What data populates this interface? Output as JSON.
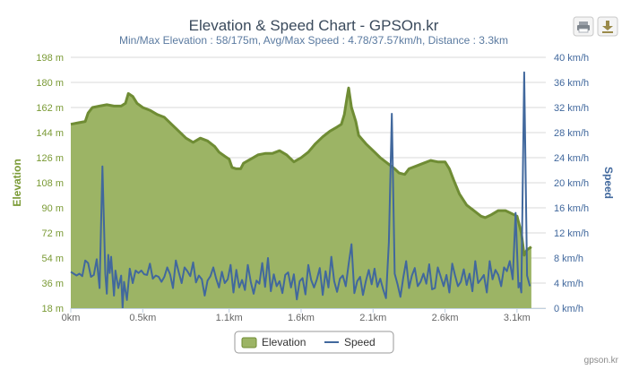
{
  "colors": {
    "elevation_fill": "#9cb465",
    "elevation_line": "#6f8c34",
    "elevation_axis": "#7a9a35",
    "speed_line": "#41689d",
    "speed_axis": "#41689d",
    "title": "#3a4a5c",
    "subtitle": "#5a7aa0",
    "grid": "#d8d8d8",
    "credit": "#8a8a8a"
  },
  "toolbar": {
    "print_icon": "print-icon",
    "export_icon": "download-icon"
  },
  "legend": {
    "elevation_label": "Elevation",
    "speed_label": "Speed"
  },
  "credit": "gpson.kr",
  "chart_data": {
    "type": "area",
    "title": "Elevation & Speed Chart - GPSOn.kr",
    "subtitle": "Min/Max Elevation : 58/175m, Avg/Max Speed : 4.78/37.57km/h, Distance : 3.3km",
    "xlabel": "",
    "x_tick_labels": [
      "0km",
      "0.5km",
      "1.1km",
      "1.6km",
      "2.1km",
      "2.6km",
      "3.1km"
    ],
    "x_ticks": [
      0,
      0.5,
      1.1,
      1.6,
      2.1,
      2.6,
      3.1
    ],
    "xlim": [
      0,
      3.3
    ],
    "grid": true,
    "legend_position": "bottom-center",
    "y_left": {
      "label": "Elevation",
      "ylim": [
        18,
        198
      ],
      "tick_labels": [
        "18 m",
        "36 m",
        "54 m",
        "72 m",
        "90 m",
        "108 m",
        "126 m",
        "144 m",
        "162 m",
        "180 m",
        "198 m"
      ]
    },
    "y_right": {
      "label": "Speed",
      "ylim": [
        0,
        40
      ],
      "tick_labels": [
        "0 km/h",
        "4 km/h",
        "8 km/h",
        "12 km/h",
        "16 km/h",
        "20 km/h",
        "24 km/h",
        "28 km/h",
        "32 km/h",
        "36 km/h",
        "40 km/h"
      ]
    },
    "series": [
      {
        "name": "Elevation",
        "type": "area",
        "unit": "m",
        "points": [
          [
            0.0,
            150
          ],
          [
            0.05,
            151
          ],
          [
            0.1,
            152
          ],
          [
            0.12,
            158
          ],
          [
            0.15,
            162
          ],
          [
            0.2,
            163
          ],
          [
            0.25,
            164
          ],
          [
            0.3,
            163
          ],
          [
            0.35,
            163
          ],
          [
            0.38,
            165
          ],
          [
            0.4,
            172
          ],
          [
            0.43,
            170
          ],
          [
            0.46,
            165
          ],
          [
            0.5,
            162
          ],
          [
            0.55,
            160
          ],
          [
            0.6,
            157
          ],
          [
            0.65,
            155
          ],
          [
            0.7,
            150
          ],
          [
            0.75,
            145
          ],
          [
            0.8,
            140
          ],
          [
            0.85,
            137
          ],
          [
            0.9,
            140
          ],
          [
            0.95,
            138
          ],
          [
            1.0,
            134
          ],
          [
            1.03,
            130
          ],
          [
            1.07,
            127
          ],
          [
            1.1,
            125
          ],
          [
            1.12,
            119
          ],
          [
            1.15,
            118
          ],
          [
            1.18,
            118
          ],
          [
            1.2,
            122
          ],
          [
            1.25,
            125
          ],
          [
            1.3,
            128
          ],
          [
            1.35,
            129
          ],
          [
            1.4,
            129
          ],
          [
            1.45,
            131
          ],
          [
            1.5,
            128
          ],
          [
            1.55,
            123
          ],
          [
            1.6,
            126
          ],
          [
            1.65,
            130
          ],
          [
            1.7,
            136
          ],
          [
            1.75,
            141
          ],
          [
            1.8,
            145
          ],
          [
            1.85,
            148
          ],
          [
            1.88,
            150
          ],
          [
            1.9,
            157
          ],
          [
            1.92,
            170
          ],
          [
            1.93,
            176
          ],
          [
            1.95,
            162
          ],
          [
            1.98,
            152
          ],
          [
            2.0,
            142
          ],
          [
            2.05,
            136
          ],
          [
            2.1,
            131
          ],
          [
            2.15,
            126
          ],
          [
            2.2,
            122
          ],
          [
            2.25,
            118
          ],
          [
            2.28,
            115
          ],
          [
            2.32,
            114
          ],
          [
            2.35,
            118
          ],
          [
            2.4,
            120
          ],
          [
            2.45,
            122
          ],
          [
            2.5,
            124
          ],
          [
            2.55,
            123
          ],
          [
            2.6,
            123
          ],
          [
            2.63,
            118
          ],
          [
            2.66,
            110
          ],
          [
            2.7,
            100
          ],
          [
            2.75,
            92
          ],
          [
            2.8,
            88
          ],
          [
            2.85,
            84
          ],
          [
            2.88,
            83
          ],
          [
            2.92,
            85
          ],
          [
            2.97,
            88
          ],
          [
            3.02,
            88
          ],
          [
            3.06,
            86
          ],
          [
            3.1,
            84
          ],
          [
            3.13,
            72
          ],
          [
            3.15,
            56
          ],
          [
            3.17,
            60
          ],
          [
            3.2,
            62
          ]
        ]
      },
      {
        "name": "Speed",
        "type": "line",
        "unit": "km/h",
        "points": [
          [
            0.0,
            5.8
          ],
          [
            0.02,
            5.5
          ],
          [
            0.04,
            5.2
          ],
          [
            0.06,
            5.5
          ],
          [
            0.08,
            5.1
          ],
          [
            0.1,
            7.6
          ],
          [
            0.12,
            7.2
          ],
          [
            0.14,
            5.0
          ],
          [
            0.16,
            5.3
          ],
          [
            0.18,
            7.8
          ],
          [
            0.2,
            3.2
          ],
          [
            0.22,
            22.6
          ],
          [
            0.24,
            5.5
          ],
          [
            0.25,
            2.3
          ],
          [
            0.26,
            8.5
          ],
          [
            0.27,
            5.6
          ],
          [
            0.28,
            8.2
          ],
          [
            0.3,
            2.0
          ],
          [
            0.31,
            6.0
          ],
          [
            0.33,
            3.2
          ],
          [
            0.35,
            5.2
          ],
          [
            0.36,
            0.0
          ],
          [
            0.37,
            4.2
          ],
          [
            0.39,
            1.3
          ],
          [
            0.41,
            6.3
          ],
          [
            0.43,
            4.0
          ],
          [
            0.45,
            6.0
          ],
          [
            0.47,
            5.6
          ],
          [
            0.49,
            6.0
          ],
          [
            0.51,
            5.4
          ],
          [
            0.53,
            5.3
          ],
          [
            0.55,
            7.1
          ],
          [
            0.57,
            4.7
          ],
          [
            0.59,
            5.2
          ],
          [
            0.61,
            5.0
          ],
          [
            0.63,
            4.2
          ],
          [
            0.65,
            5.0
          ],
          [
            0.67,
            6.5
          ],
          [
            0.69,
            5.4
          ],
          [
            0.71,
            3.2
          ],
          [
            0.73,
            7.6
          ],
          [
            0.75,
            5.7
          ],
          [
            0.77,
            4.0
          ],
          [
            0.79,
            6.5
          ],
          [
            0.81,
            5.9
          ],
          [
            0.83,
            5.1
          ],
          [
            0.85,
            7.3
          ],
          [
            0.87,
            4.1
          ],
          [
            0.89,
            5.2
          ],
          [
            0.91,
            4.6
          ],
          [
            0.93,
            2.0
          ],
          [
            0.95,
            4.4
          ],
          [
            0.97,
            5.1
          ],
          [
            0.99,
            6.5
          ],
          [
            1.01,
            4.7
          ],
          [
            1.03,
            3.3
          ],
          [
            1.05,
            5.8
          ],
          [
            1.07,
            4.0
          ],
          [
            1.09,
            4.6
          ],
          [
            1.11,
            6.9
          ],
          [
            1.13,
            2.5
          ],
          [
            1.15,
            6.1
          ],
          [
            1.17,
            3.3
          ],
          [
            1.19,
            4.5
          ],
          [
            1.21,
            2.9
          ],
          [
            1.23,
            6.9
          ],
          [
            1.25,
            4.2
          ],
          [
            1.27,
            2.3
          ],
          [
            1.29,
            4.4
          ],
          [
            1.31,
            3.9
          ],
          [
            1.33,
            7.2
          ],
          [
            1.35,
            3.4
          ],
          [
            1.37,
            8.0
          ],
          [
            1.39,
            2.7
          ],
          [
            1.41,
            5.4
          ],
          [
            1.43,
            3.5
          ],
          [
            1.45,
            4.3
          ],
          [
            1.47,
            2.4
          ],
          [
            1.49,
            5.3
          ],
          [
            1.51,
            5.7
          ],
          [
            1.53,
            3.3
          ],
          [
            1.55,
            5.4
          ],
          [
            1.57,
            1.4
          ],
          [
            1.59,
            4.3
          ],
          [
            1.61,
            4.8
          ],
          [
            1.63,
            2.2
          ],
          [
            1.65,
            6.9
          ],
          [
            1.67,
            4.5
          ],
          [
            1.69,
            3.3
          ],
          [
            1.71,
            4.6
          ],
          [
            1.73,
            6.4
          ],
          [
            1.75,
            2.1
          ],
          [
            1.77,
            5.9
          ],
          [
            1.79,
            3.3
          ],
          [
            1.81,
            8.2
          ],
          [
            1.83,
            4.3
          ],
          [
            1.85,
            2.6
          ],
          [
            1.87,
            4.7
          ],
          [
            1.89,
            5.2
          ],
          [
            1.91,
            3.5
          ],
          [
            1.93,
            7.0
          ],
          [
            1.95,
            10.2
          ],
          [
            1.97,
            2.4
          ],
          [
            1.99,
            4.3
          ],
          [
            2.01,
            5.0
          ],
          [
            2.03,
            2.1
          ],
          [
            2.05,
            4.3
          ],
          [
            2.07,
            6.1
          ],
          [
            2.09,
            3.8
          ],
          [
            2.11,
            6.3
          ],
          [
            2.13,
            3.4
          ],
          [
            2.15,
            4.7
          ],
          [
            2.17,
            3.0
          ],
          [
            2.19,
            1.6
          ],
          [
            2.21,
            10.5
          ],
          [
            2.23,
            31.0
          ],
          [
            2.25,
            5.5
          ],
          [
            2.27,
            3.8
          ],
          [
            2.29,
            1.8
          ],
          [
            2.31,
            4.9
          ],
          [
            2.33,
            7.5
          ],
          [
            2.35,
            3.2
          ],
          [
            2.37,
            5.2
          ],
          [
            2.39,
            6.4
          ],
          [
            2.41,
            3.5
          ],
          [
            2.43,
            4.2
          ],
          [
            2.45,
            5.5
          ],
          [
            2.47,
            3.9
          ],
          [
            2.49,
            7.0
          ],
          [
            2.51,
            3.0
          ],
          [
            2.53,
            3.2
          ],
          [
            2.55,
            6.5
          ],
          [
            2.57,
            5.0
          ],
          [
            2.59,
            3.5
          ],
          [
            2.61,
            5.3
          ],
          [
            2.63,
            2.5
          ],
          [
            2.65,
            7.1
          ],
          [
            2.67,
            5.2
          ],
          [
            2.69,
            3.5
          ],
          [
            2.71,
            4.2
          ],
          [
            2.73,
            6.2
          ],
          [
            2.75,
            3.7
          ],
          [
            2.77,
            5.5
          ],
          [
            2.79,
            2.7
          ],
          [
            2.81,
            7.5
          ],
          [
            2.83,
            4.0
          ],
          [
            2.85,
            4.6
          ],
          [
            2.87,
            5.3
          ],
          [
            2.89,
            2.5
          ],
          [
            2.91,
            7.5
          ],
          [
            2.93,
            4.6
          ],
          [
            2.95,
            6.1
          ],
          [
            2.97,
            5.3
          ],
          [
            2.99,
            3.5
          ],
          [
            3.01,
            6.5
          ],
          [
            3.03,
            5.9
          ],
          [
            3.05,
            7.5
          ],
          [
            3.07,
            4.6
          ],
          [
            3.09,
            15.2
          ],
          [
            3.11,
            3.3
          ],
          [
            3.12,
            4.0
          ],
          [
            3.13,
            2.5
          ],
          [
            3.15,
            37.6
          ],
          [
            3.17,
            5.2
          ],
          [
            3.19,
            3.5
          ]
        ]
      }
    ]
  }
}
